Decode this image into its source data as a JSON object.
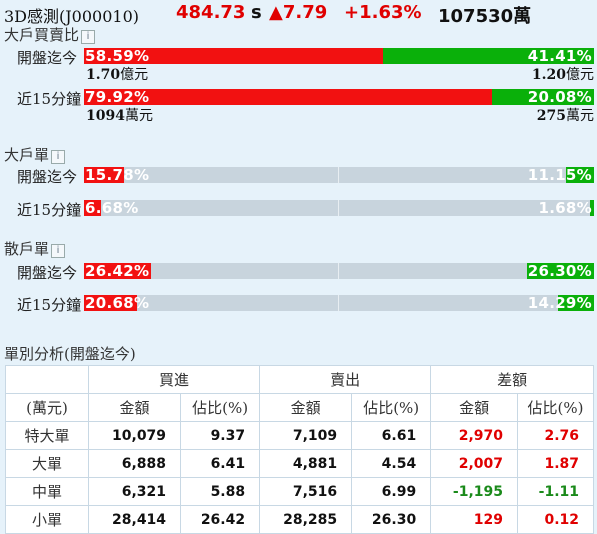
{
  "header": {
    "stock_name": "3D感測(J000010)",
    "price": "484.73",
    "price_flag": "s",
    "change": "▲7.79",
    "change_pct": "+1.63%",
    "volume": "107530萬"
  },
  "colors": {
    "buy": "#f21111",
    "sell": "#0ab00a",
    "neutral": "#c8d4dd",
    "up_text": "#e00000",
    "down_text": "#1a8a1a"
  },
  "section1": {
    "title": "大戶買賣比",
    "info_icon": "i",
    "rows": [
      {
        "label": "開盤迄今",
        "buy_pct": "58.59%",
        "buy_value": 58.59,
        "sell_pct": "41.41%",
        "sell_value": 41.41,
        "buy_amt": "1.70",
        "buy_unit": "億元",
        "sell_amt": "1.20",
        "sell_unit": "億元"
      },
      {
        "label": "近15分鐘",
        "buy_pct": "79.92%",
        "buy_value": 79.92,
        "sell_pct": "20.08%",
        "sell_value": 20.08,
        "buy_amt": "1094",
        "buy_unit": "萬元",
        "sell_amt": "275",
        "sell_unit": "萬元"
      }
    ]
  },
  "section2": {
    "title": "大戶單",
    "info_icon": "i",
    "rows": [
      {
        "label": "開盤迄今",
        "buy_pct": "15.78%",
        "buy_value": 15.78,
        "sell_pct": "11.15%",
        "sell_value": 11.15
      },
      {
        "label": "近15分鐘",
        "buy_pct": "6.68%",
        "buy_value": 6.68,
        "sell_pct": "1.68%",
        "sell_value": 1.68
      }
    ]
  },
  "section3": {
    "title": "散戶單",
    "info_icon": "i",
    "rows": [
      {
        "label": "開盤迄今",
        "buy_pct": "26.42%",
        "buy_value": 26.42,
        "sell_pct": "26.30%",
        "sell_value": 26.3
      },
      {
        "label": "近15分鐘",
        "buy_pct": "20.68%",
        "buy_value": 20.68,
        "sell_pct": "14.29%",
        "sell_value": 14.29
      }
    ]
  },
  "table": {
    "title": "單別分析(開盤迄今)",
    "group_headers": [
      "買進",
      "賣出",
      "差額"
    ],
    "unit_label": "(萬元)",
    "sub_headers": [
      "金額",
      "佔比(%)",
      "金額",
      "佔比(%)",
      "金額",
      "佔比(%)"
    ],
    "rows": [
      {
        "label": "特大單",
        "cells": [
          "10,079",
          "9.37",
          "7,109",
          "6.61",
          "2,970",
          "2.76"
        ],
        "diff_sign": "up"
      },
      {
        "label": "大單",
        "cells": [
          "6,888",
          "6.41",
          "4,881",
          "4.54",
          "2,007",
          "1.87"
        ],
        "diff_sign": "up"
      },
      {
        "label": "中單",
        "cells": [
          "6,321",
          "5.88",
          "7,516",
          "6.99",
          "-1,195",
          "-1.11"
        ],
        "diff_sign": "down"
      },
      {
        "label": "小單",
        "cells": [
          "28,414",
          "26.42",
          "28,285",
          "26.30",
          "129",
          "0.12"
        ],
        "diff_sign": "up"
      }
    ]
  }
}
